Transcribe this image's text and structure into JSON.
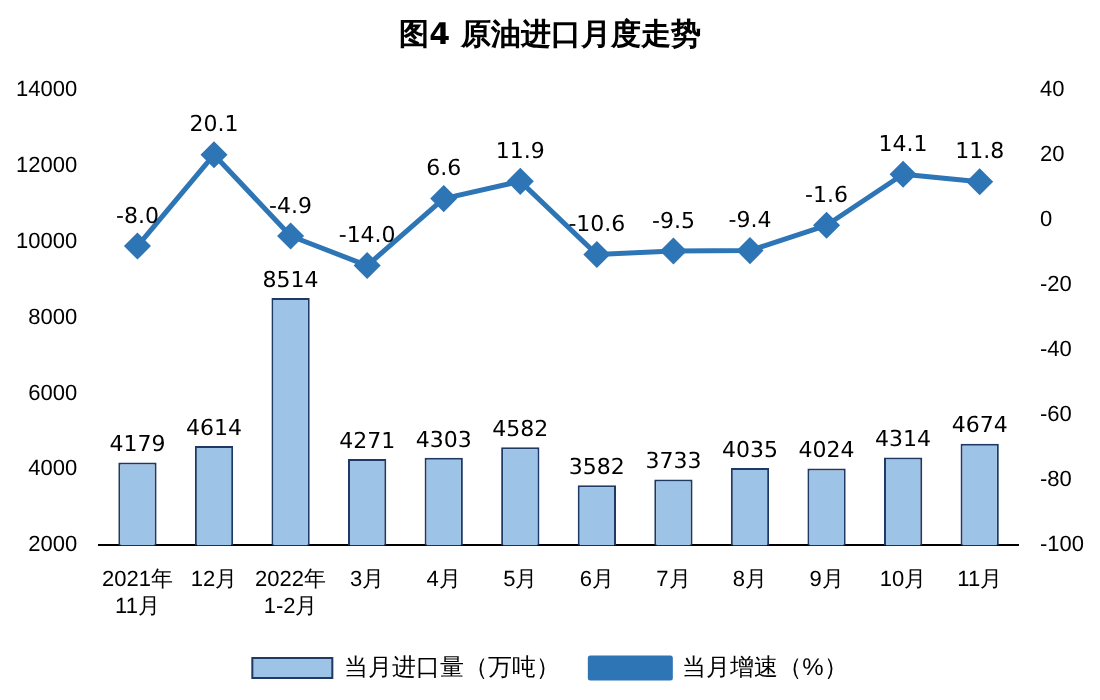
{
  "chart_data": {
    "type": "bar",
    "title": "图4  原油进口月度走势",
    "categories": [
      "2021年\n11月",
      "12月",
      "2022年\n1-2月",
      "3月",
      "4月",
      "5月",
      "6月",
      "7月",
      "8月",
      "9月",
      "10月",
      "11月"
    ],
    "series": [
      {
        "name": "当月进口量（万吨）",
        "color": "#9dc3e6",
        "values": [
          4179,
          4614,
          8514,
          4271,
          4303,
          4582,
          3582,
          3733,
          4035,
          4024,
          4314,
          4674
        ],
        "value_labels": [
          "4179",
          "4614",
          "8514",
          "4271",
          "4303",
          "4582",
          "3582",
          "3733",
          "4035",
          "4024",
          "4314",
          "4674"
        ]
      },
      {
        "name": "当月增速（%）",
        "type": "line",
        "axis": "y2",
        "color": "#2e75b6",
        "marker": "diamond",
        "values": [
          -8.0,
          20.1,
          -4.9,
          -14.0,
          6.6,
          11.9,
          -10.6,
          -9.5,
          -9.4,
          -1.6,
          14.1,
          11.8
        ],
        "value_labels": [
          "-8.0",
          "20.1",
          "-4.9",
          "-14.0",
          "6.6",
          "11.9",
          "-10.6",
          "-9.5",
          "-9.4",
          "-1.6",
          "14.1",
          "11.8"
        ]
      }
    ],
    "ylim": [
      2000,
      14000
    ],
    "yticks": [
      2000,
      4000,
      6000,
      8000,
      10000,
      12000,
      14000
    ],
    "y2lim": [
      -100,
      40
    ],
    "y2ticks": [
      -100,
      -80,
      -60,
      -40,
      -20,
      0,
      20,
      40
    ],
    "grid": false,
    "legend": "bottom"
  }
}
